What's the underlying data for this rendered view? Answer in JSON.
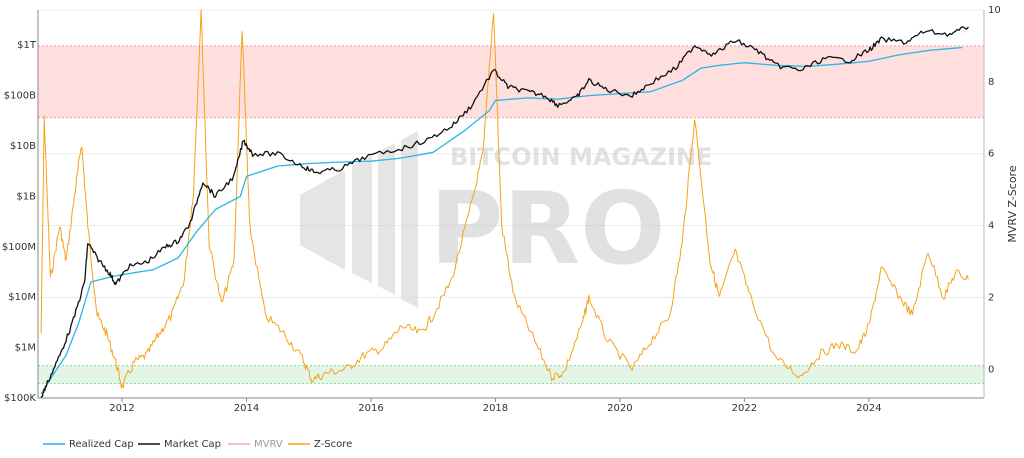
{
  "chart_data": {
    "type": "line",
    "title": "",
    "watermark": {
      "line1": "BITCOIN MAGAZINE",
      "line2": "PRO"
    },
    "x_ticks": [
      "2012",
      "2014",
      "2016",
      "2018",
      "2020",
      "2022",
      "2024"
    ],
    "xlim": [
      2010.65,
      2025.85
    ],
    "left_axis": {
      "scale": "log",
      "ticks": [
        {
          "label": "$100K",
          "value": 100000
        },
        {
          "label": "$1M",
          "value": 1000000
        },
        {
          "label": "$10M",
          "value": 10000000
        },
        {
          "label": "$100M",
          "value": 100000000
        },
        {
          "label": "$1B",
          "value": 1000000000
        },
        {
          "label": "$10B",
          "value": 10000000000
        },
        {
          "label": "$100B",
          "value": 100000000000
        },
        {
          "label": "$1T",
          "value": 1000000000000
        }
      ],
      "ylim": [
        100000,
        5000000000000
      ]
    },
    "right_axis": {
      "label": "MVRV Z-Score",
      "ticks": [
        "0",
        "2",
        "4",
        "6",
        "8",
        "10"
      ],
      "ylim": [
        -0.8,
        10
      ]
    },
    "bands": [
      {
        "name": "overvalued-zone",
        "from": 7,
        "to": 9,
        "color": "#ffdede",
        "edge": "#f2a0a0"
      },
      {
        "name": "undervalued-zone",
        "from": -0.4,
        "to": 0.1,
        "color": "#e2f6e6",
        "edge": "#8fd49a"
      }
    ],
    "colors": {
      "realized_cap": "#29b6e6",
      "market_cap": "#111111",
      "mvrv": "#f4a6b8",
      "zscore": "#f7a21b"
    },
    "legend": [
      {
        "key": "realized_cap",
        "label": "Realized Cap",
        "color": "#29b6e6"
      },
      {
        "key": "market_cap",
        "label": "Market Cap",
        "color": "#111111"
      },
      {
        "key": "mvrv",
        "label": "MVRV",
        "color": "#f4a6b8",
        "muted": true
      },
      {
        "key": "zscore",
        "label": "Z-Score",
        "color": "#f7a21b"
      }
    ],
    "series": [
      {
        "name": "Realized Cap",
        "axis": "left",
        "points": [
          [
            2010.7,
            120000
          ],
          [
            2010.9,
            300000
          ],
          [
            2011.1,
            700000
          ],
          [
            2011.3,
            3000000
          ],
          [
            2011.5,
            20000000
          ],
          [
            2011.8,
            25000000
          ],
          [
            2012.0,
            28000000
          ],
          [
            2012.5,
            35000000
          ],
          [
            2012.9,
            60000000
          ],
          [
            2013.2,
            200000000
          ],
          [
            2013.5,
            550000000
          ],
          [
            2013.9,
            1000000000
          ],
          [
            2014.0,
            2500000000
          ],
          [
            2014.5,
            4000000000
          ],
          [
            2015.0,
            4500000000
          ],
          [
            2015.5,
            4800000000
          ],
          [
            2016.0,
            5000000000
          ],
          [
            2016.5,
            5800000000
          ],
          [
            2017.0,
            7500000000
          ],
          [
            2017.5,
            20000000000
          ],
          [
            2017.9,
            50000000000
          ],
          [
            2018.0,
            80000000000
          ],
          [
            2018.5,
            90000000000
          ],
          [
            2019.0,
            85000000000
          ],
          [
            2019.5,
            100000000000
          ],
          [
            2020.0,
            110000000000
          ],
          [
            2020.5,
            120000000000
          ],
          [
            2021.0,
            200000000000
          ],
          [
            2021.3,
            350000000000
          ],
          [
            2021.6,
            400000000000
          ],
          [
            2022.0,
            450000000000
          ],
          [
            2022.5,
            400000000000
          ],
          [
            2023.0,
            380000000000
          ],
          [
            2023.5,
            420000000000
          ],
          [
            2024.0,
            480000000000
          ],
          [
            2024.5,
            650000000000
          ],
          [
            2025.0,
            800000000000
          ],
          [
            2025.5,
            900000000000
          ]
        ]
      },
      {
        "name": "Market Cap",
        "axis": "left",
        "points": [
          [
            2010.7,
            100000
          ],
          [
            2010.8,
            200000
          ],
          [
            2011.0,
            700000
          ],
          [
            2011.2,
            3000000
          ],
          [
            2011.4,
            20000000
          ],
          [
            2011.45,
            120000000
          ],
          [
            2011.6,
            60000000
          ],
          [
            2011.8,
            30000000
          ],
          [
            2011.9,
            18000000
          ],
          [
            2012.1,
            40000000
          ],
          [
            2012.4,
            50000000
          ],
          [
            2012.7,
            100000000
          ],
          [
            2012.9,
            130000000
          ],
          [
            2013.1,
            300000000
          ],
          [
            2013.3,
            2000000000
          ],
          [
            2013.5,
            1000000000
          ],
          [
            2013.8,
            2500000000
          ],
          [
            2013.95,
            13000000000
          ],
          [
            2014.1,
            7000000000
          ],
          [
            2014.5,
            7000000000
          ],
          [
            2014.9,
            4000000000
          ],
          [
            2015.1,
            3000000000
          ],
          [
            2015.5,
            3500000000
          ],
          [
            2015.9,
            6000000000
          ],
          [
            2016.5,
            9000000000
          ],
          [
            2016.9,
            13000000000
          ],
          [
            2017.3,
            25000000000
          ],
          [
            2017.6,
            60000000000
          ],
          [
            2017.97,
            320000000000
          ],
          [
            2018.2,
            150000000000
          ],
          [
            2018.5,
            120000000000
          ],
          [
            2018.8,
            100000000000
          ],
          [
            2019.0,
            65000000000
          ],
          [
            2019.3,
            90000000000
          ],
          [
            2019.5,
            200000000000
          ],
          [
            2019.8,
            130000000000
          ],
          [
            2020.2,
            100000000000
          ],
          [
            2020.5,
            180000000000
          ],
          [
            2020.9,
            350000000000
          ],
          [
            2021.2,
            1000000000000
          ],
          [
            2021.5,
            650000000000
          ],
          [
            2021.85,
            1250000000000
          ],
          [
            2022.2,
            800000000000
          ],
          [
            2022.5,
            400000000000
          ],
          [
            2022.9,
            320000000000
          ],
          [
            2023.3,
            550000000000
          ],
          [
            2023.7,
            500000000000
          ],
          [
            2024.0,
            800000000000
          ],
          [
            2024.2,
            1300000000000
          ],
          [
            2024.6,
            1150000000000
          ],
          [
            2024.9,
            1900000000000
          ],
          [
            2025.3,
            1650000000000
          ],
          [
            2025.6,
            2300000000000
          ]
        ]
      },
      {
        "name": "Z-Score",
        "axis": "right",
        "points": [
          [
            2010.7,
            1.0
          ],
          [
            2010.75,
            7.0
          ],
          [
            2010.85,
            2.5
          ],
          [
            2011.0,
            4.0
          ],
          [
            2011.1,
            3.0
          ],
          [
            2011.25,
            5.0
          ],
          [
            2011.35,
            6.3
          ],
          [
            2011.45,
            4.0
          ],
          [
            2011.6,
            1.5
          ],
          [
            2011.75,
            1.0
          ],
          [
            2011.9,
            0.2
          ],
          [
            2012.0,
            -0.5
          ],
          [
            2012.2,
            0.2
          ],
          [
            2012.4,
            0.4
          ],
          [
            2012.6,
            1.0
          ],
          [
            2012.8,
            1.5
          ],
          [
            2013.0,
            2.5
          ],
          [
            2013.15,
            5.0
          ],
          [
            2013.27,
            10.0
          ],
          [
            2013.4,
            3.5
          ],
          [
            2013.6,
            1.8
          ],
          [
            2013.8,
            3.0
          ],
          [
            2013.93,
            9.5
          ],
          [
            2014.05,
            4.0
          ],
          [
            2014.3,
            1.5
          ],
          [
            2014.6,
            1.0
          ],
          [
            2014.9,
            0.3
          ],
          [
            2015.05,
            -0.3
          ],
          [
            2015.3,
            -0.1
          ],
          [
            2015.6,
            0.0
          ],
          [
            2015.9,
            0.4
          ],
          [
            2016.2,
            0.6
          ],
          [
            2016.5,
            1.2
          ],
          [
            2016.8,
            1.0
          ],
          [
            2017.0,
            1.5
          ],
          [
            2017.3,
            2.5
          ],
          [
            2017.6,
            4.5
          ],
          [
            2017.8,
            6.0
          ],
          [
            2017.97,
            10.0
          ],
          [
            2018.1,
            4.0
          ],
          [
            2018.3,
            2.0
          ],
          [
            2018.6,
            0.9
          ],
          [
            2018.9,
            -0.2
          ],
          [
            2019.1,
            -0.1
          ],
          [
            2019.4,
            1.3
          ],
          [
            2019.5,
            2.0
          ],
          [
            2019.8,
            0.8
          ],
          [
            2020.2,
            0.0
          ],
          [
            2020.5,
            0.8
          ],
          [
            2020.8,
            1.5
          ],
          [
            2021.0,
            3.5
          ],
          [
            2021.2,
            7.0
          ],
          [
            2021.45,
            3.0
          ],
          [
            2021.6,
            2.0
          ],
          [
            2021.85,
            3.3
          ],
          [
            2022.1,
            2.0
          ],
          [
            2022.5,
            0.3
          ],
          [
            2022.9,
            -0.2
          ],
          [
            2023.2,
            0.4
          ],
          [
            2023.5,
            0.7
          ],
          [
            2023.8,
            0.5
          ],
          [
            2024.0,
            1.2
          ],
          [
            2024.2,
            2.8
          ],
          [
            2024.5,
            2.0
          ],
          [
            2024.7,
            1.5
          ],
          [
            2024.95,
            3.3
          ],
          [
            2025.2,
            2.0
          ],
          [
            2025.4,
            2.7
          ],
          [
            2025.6,
            2.5
          ]
        ]
      }
    ]
  }
}
